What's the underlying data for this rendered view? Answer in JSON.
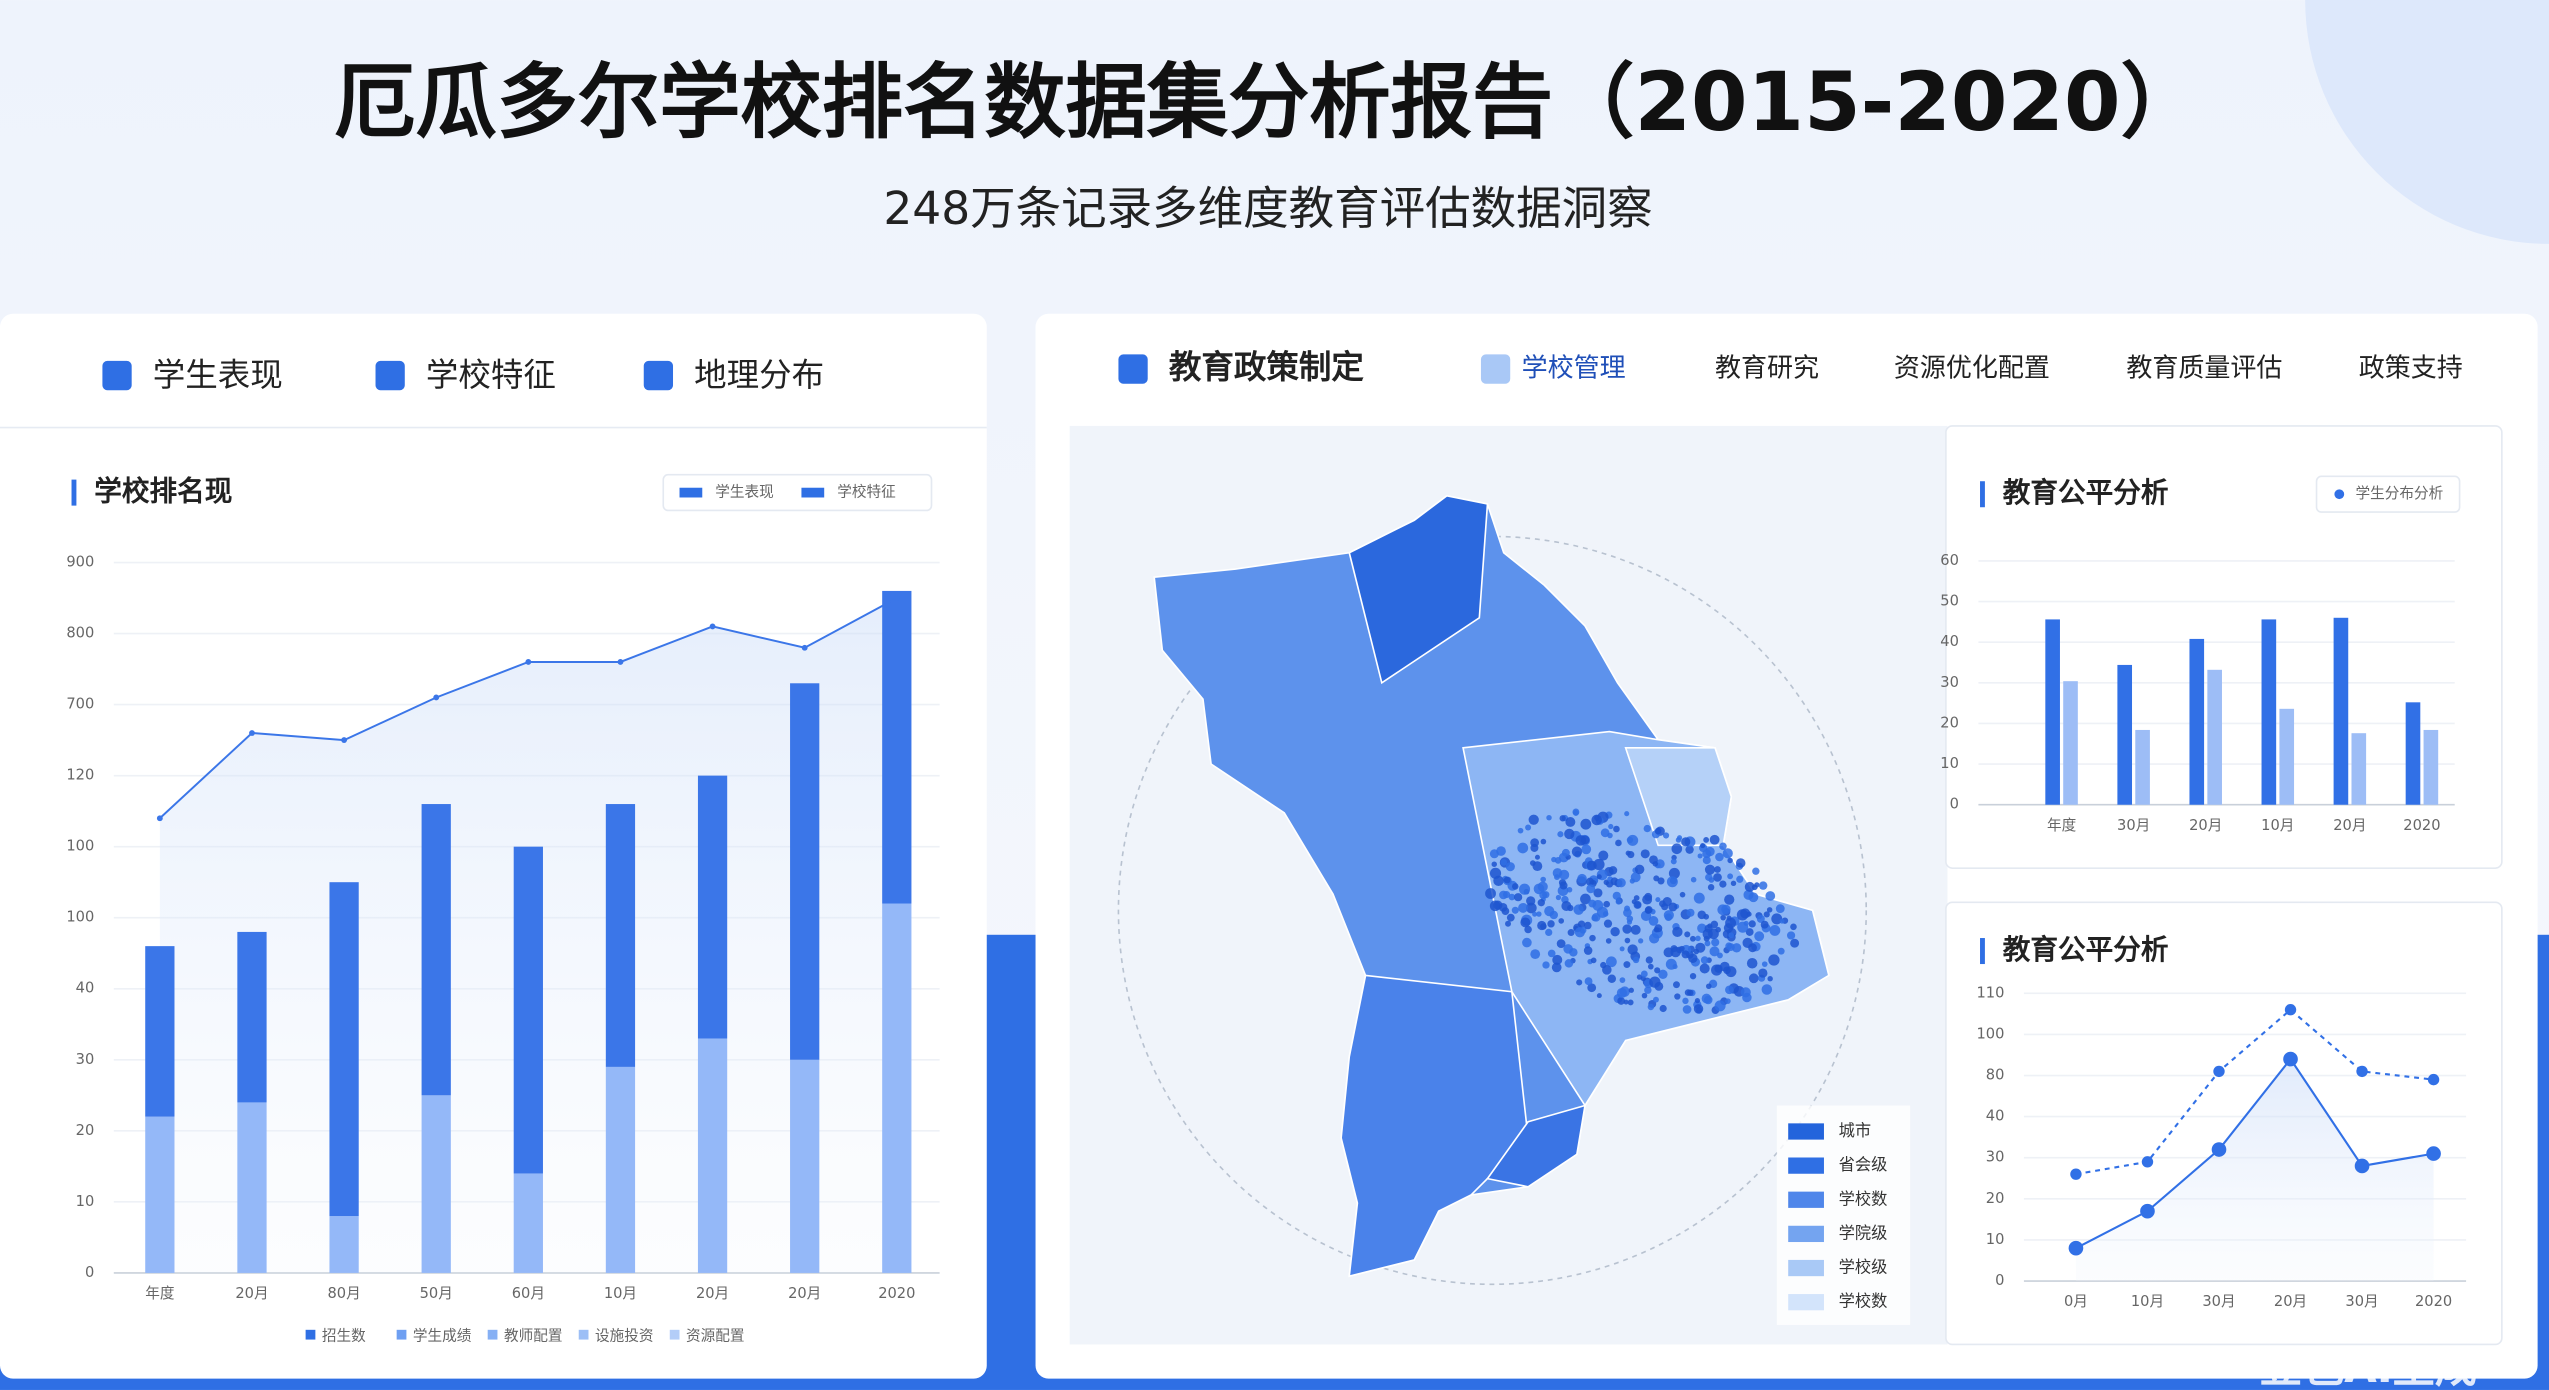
{
  "header": {
    "title": "厄瓜多尔学校排名数据集分析报告（2015-2020）",
    "subtitle": "248万条记录多维度教育评估数据洞察"
  },
  "left_panel": {
    "tabs": [
      "学生表现",
      "学校特征",
      "地理分布"
    ]
  },
  "right_panel": {
    "tabs": [
      "教育政策制定",
      "学校管理",
      "教育研究",
      "资源优化配置",
      "教育质量评估",
      "政策支持"
    ]
  },
  "map": {
    "legend": [
      {
        "label": "城市",
        "color": "#2364dc"
      },
      {
        "label": "省会级",
        "color": "#2f6fe4"
      },
      {
        "label": "学校数",
        "color": "#4f86ea"
      },
      {
        "label": "学院级",
        "color": "#74a4f0"
      },
      {
        "label": "学校级",
        "color": "#a9c9f6"
      },
      {
        "label": "学校数",
        "color": "#d3e4fb"
      }
    ]
  },
  "watermark": "豆包AI生成",
  "chart_data": [
    {
      "type": "bar",
      "stacked": true,
      "title": "学校排名现",
      "categories": [
        "年度",
        "20月",
        "80月",
        "50月",
        "60月",
        "10月",
        "20月",
        "20月",
        "2020"
      ],
      "series": [
        {
          "name": "学生表现",
          "color": "#94b8f8",
          "values": [
            2.2,
            2.4,
            0.8,
            2.5,
            1.4,
            2.9,
            3.3,
            3.0,
            5.2
          ]
        },
        {
          "name": "学校特征",
          "color": "#3b76e8",
          "values": [
            2.4,
            2.4,
            4.7,
            4.1,
            4.6,
            3.7,
            3.7,
            5.3,
            4.4
          ]
        },
        {
          "type": "line",
          "color": "#3b76e8",
          "values": [
            6.4,
            7.6,
            7.5,
            8.1,
            8.6,
            8.6,
            9.1,
            8.8,
            9.5
          ]
        }
      ],
      "ylim": [
        0,
        10
      ],
      "yticks": [
        {
          "value": 0,
          "label": "0"
        },
        {
          "value": 1,
          "label": "10"
        },
        {
          "value": 2,
          "label": "20"
        },
        {
          "value": 3,
          "label": "30"
        },
        {
          "value": 4,
          "label": "40"
        },
        {
          "value": 5,
          "label": "100"
        },
        {
          "value": 6,
          "label": "100"
        },
        {
          "value": 7,
          "label": "120"
        },
        {
          "value": 8,
          "label": "700"
        },
        {
          "value": 9,
          "label": "800"
        },
        {
          "value": 10,
          "label": "900"
        }
      ],
      "grid": true,
      "footer_legend": [
        {
          "label": "招生数",
          "color": "#2f6fe4"
        },
        {
          "label": "学生成绩",
          "color": "#6e9ff2"
        },
        {
          "label": "教师配置",
          "color": "#86b0f4"
        },
        {
          "label": "设施投资",
          "color": "#9dbff6"
        },
        {
          "label": "资源配置",
          "color": "#b3cdf8"
        }
      ]
    },
    {
      "type": "bar",
      "title": "教育公平分析",
      "categories": [
        "年度",
        "30月",
        "20月",
        "10月",
        "20月",
        "2020"
      ],
      "series": [
        {
          "name": "学生分布分析",
          "color": "#3170e6",
          "values": [
            45.6,
            34.4,
            40.8,
            45.6,
            46,
            25.2
          ]
        },
        {
          "color": "#9dbdf6",
          "values": [
            30.4,
            18.4,
            33.2,
            23.6,
            17.6,
            18.4
          ]
        }
      ],
      "ylim": [
        0,
        60
      ],
      "yticks": [
        0,
        10,
        20,
        30,
        40,
        50,
        60
      ],
      "grid": true
    },
    {
      "type": "line",
      "title": "教育公平分析",
      "categories": [
        "0月",
        "10月",
        "30月",
        "20月",
        "30月",
        "2020"
      ],
      "series": [
        {
          "color": "#3170e6",
          "dashed": true,
          "values": [
            2.6,
            2.9,
            5.1,
            6.6,
            5.1,
            4.9
          ]
        },
        {
          "color": "#3170e6",
          "values": [
            0.8,
            1.7,
            3.2,
            5.4,
            2.8,
            3.1
          ]
        }
      ],
      "ylim": [
        0,
        7
      ],
      "yticks": [
        {
          "value": 0,
          "label": "0"
        },
        {
          "value": 1,
          "label": "10"
        },
        {
          "value": 2,
          "label": "20"
        },
        {
          "value": 3,
          "label": "30"
        },
        {
          "value": 4,
          "label": "40"
        },
        {
          "value": 5,
          "label": "80"
        },
        {
          "value": 6,
          "label": "100"
        },
        {
          "value": 7,
          "label": "110"
        }
      ],
      "grid": true
    }
  ]
}
